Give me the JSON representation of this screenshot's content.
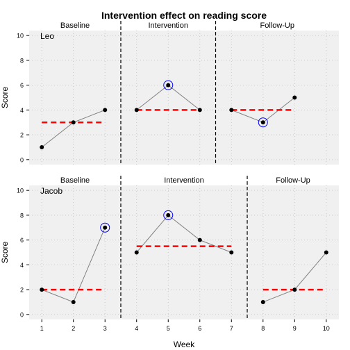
{
  "chart_data": {
    "type": "line",
    "title": "Intervention effect on reading score",
    "xlabel": "Week",
    "ylabel": "Score",
    "xlim": [
      0.6,
      10.4
    ],
    "ylim": [
      -0.4,
      10.4
    ],
    "xticks": [
      "1",
      "2",
      "3",
      "4",
      "5",
      "6",
      "7",
      "8",
      "9",
      "10"
    ],
    "yticks": [
      "0",
      "2",
      "4",
      "6",
      "8",
      "10"
    ],
    "grid": true,
    "colors": {
      "points": "#000000",
      "line": "#808080",
      "mean_line": "#ff0000",
      "highlight": "#0000ff",
      "phase_divider": "#000000",
      "panel_bg": "#f0f0f0"
    },
    "panels": [
      {
        "name": "Leo",
        "phases": [
          {
            "label": "Baseline",
            "x": [
              1,
              2,
              3
            ],
            "y": [
              1,
              3,
              4
            ],
            "mean": 3.0,
            "highlight_x": null
          },
          {
            "label": "Intervention",
            "x": [
              4,
              5,
              6
            ],
            "y": [
              4,
              6,
              4
            ],
            "mean": 4.0,
            "highlight_x": 5
          },
          {
            "label": "Follow-Up",
            "x": [
              7,
              8,
              9
            ],
            "y": [
              4,
              3,
              5
            ],
            "mean": 4.0,
            "highlight_x": 8
          }
        ],
        "dividers": [
          3.5,
          6.5
        ]
      },
      {
        "name": "Jacob",
        "phases": [
          {
            "label": "Baseline",
            "x": [
              1,
              2,
              3
            ],
            "y": [
              2,
              1,
              7
            ],
            "mean": 2.0,
            "highlight_x": 3
          },
          {
            "label": "Intervention",
            "x": [
              4,
              5,
              6,
              7
            ],
            "y": [
              5,
              8,
              6,
              5
            ],
            "mean": 5.5,
            "highlight_x": 5
          },
          {
            "label": "Follow-Up",
            "x": [
              8,
              9,
              10
            ],
            "y": [
              1,
              2,
              5
            ],
            "mean": 2.0,
            "highlight_x": null
          }
        ],
        "dividers": [
          3.5,
          7.5
        ]
      }
    ]
  }
}
